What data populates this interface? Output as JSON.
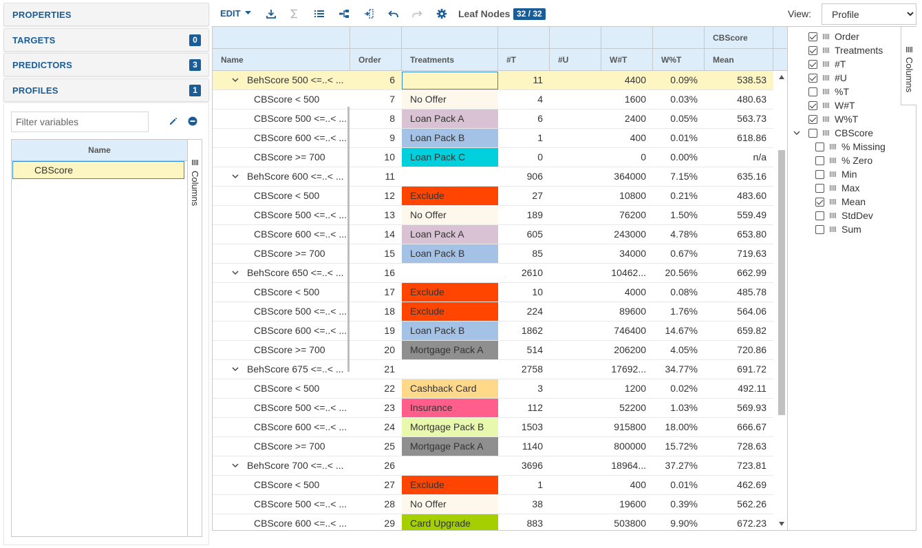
{
  "left_panel": {
    "sections": [
      {
        "title": "PROPERTIES",
        "badge": ""
      },
      {
        "title": "TARGETS",
        "badge": "0"
      },
      {
        "title": "PREDICTORS",
        "badge": "3"
      },
      {
        "title": "PROFILES",
        "badge": "1"
      }
    ],
    "filter_placeholder": "Filter variables",
    "variables_header": "Name",
    "variables": [
      "CBScore"
    ],
    "columns_tab": "Columns"
  },
  "toolbar": {
    "edit_label": "EDIT",
    "leaf_nodes_label": "Leaf Nodes",
    "leaf_nodes_count": "32 / 32",
    "view_label": "View:",
    "view_value": "Profile",
    "view_options": [
      "Profile"
    ]
  },
  "grid": {
    "group_header": "CBScore",
    "columns": [
      "Name",
      "Order",
      "Treatments",
      "#T",
      "#U",
      "W#T",
      "W%T",
      "Mean"
    ],
    "rows": [
      {
        "name": "BehScore 500 <=..< ...",
        "order": "6",
        "treatment": "",
        "t": "11",
        "u": "",
        "wt": "4400",
        "wpt": "0.09%",
        "mean": "538.53",
        "parent": true,
        "selected": true,
        "color": ""
      },
      {
        "name": "CBScore < 500",
        "order": "7",
        "treatment": "No Offer",
        "t": "4",
        "u": "",
        "wt": "1600",
        "wpt": "0.03%",
        "mean": "480.63",
        "parent": false,
        "color": "#fdf8eb"
      },
      {
        "name": "CBScore 500 <=..< ...",
        "order": "8",
        "treatment": "Loan Pack A",
        "t": "6",
        "u": "",
        "wt": "2400",
        "wpt": "0.05%",
        "mean": "563.73",
        "parent": false,
        "color": "#d9c2d4"
      },
      {
        "name": "CBScore 600 <=..< ...",
        "order": "9",
        "treatment": "Loan Pack B",
        "t": "1",
        "u": "",
        "wt": "400",
        "wpt": "0.01%",
        "mean": "618.86",
        "parent": false,
        "color": "#a4c2e6"
      },
      {
        "name": "CBScore >= 700",
        "order": "10",
        "treatment": "Loan Pack C",
        "t": "0",
        "u": "",
        "wt": "0",
        "wpt": "0.00%",
        "mean": "n/a",
        "parent": false,
        "color": "#00cfdc"
      },
      {
        "name": "BehScore 600 <=..< ...",
        "order": "11",
        "treatment": "",
        "t": "906",
        "u": "",
        "wt": "364000",
        "wpt": "7.15%",
        "mean": "635.16",
        "parent": true,
        "color": ""
      },
      {
        "name": "CBScore < 500",
        "order": "12",
        "treatment": "Exclude",
        "t": "27",
        "u": "",
        "wt": "10800",
        "wpt": "0.21%",
        "mean": "483.60",
        "parent": false,
        "color": "#ff4500"
      },
      {
        "name": "CBScore 500 <=..< ...",
        "order": "13",
        "treatment": "No Offer",
        "t": "189",
        "u": "",
        "wt": "76200",
        "wpt": "1.50%",
        "mean": "559.49",
        "parent": false,
        "color": "#fdf8eb"
      },
      {
        "name": "CBScore 600 <=..< ...",
        "order": "14",
        "treatment": "Loan Pack A",
        "t": "605",
        "u": "",
        "wt": "243000",
        "wpt": "4.78%",
        "mean": "653.80",
        "parent": false,
        "color": "#d9c2d4"
      },
      {
        "name": "CBScore >= 700",
        "order": "15",
        "treatment": "Loan Pack B",
        "t": "85",
        "u": "",
        "wt": "34000",
        "wpt": "0.67%",
        "mean": "719.63",
        "parent": false,
        "color": "#a4c2e6"
      },
      {
        "name": "BehScore 650 <=..< ...",
        "order": "16",
        "treatment": "",
        "t": "2610",
        "u": "",
        "wt": "10462...",
        "wpt": "20.56%",
        "mean": "662.99",
        "parent": true,
        "color": ""
      },
      {
        "name": "CBScore < 500",
        "order": "17",
        "treatment": "Exclude",
        "t": "10",
        "u": "",
        "wt": "4000",
        "wpt": "0.08%",
        "mean": "485.78",
        "parent": false,
        "color": "#ff4500"
      },
      {
        "name": "CBScore 500 <=..< ...",
        "order": "18",
        "treatment": "Exclude",
        "t": "224",
        "u": "",
        "wt": "89600",
        "wpt": "1.76%",
        "mean": "564.06",
        "parent": false,
        "color": "#ff4500"
      },
      {
        "name": "CBScore 600 <=..< ...",
        "order": "19",
        "treatment": "Loan Pack B",
        "t": "1862",
        "u": "",
        "wt": "746400",
        "wpt": "14.67%",
        "mean": "659.82",
        "parent": false,
        "color": "#a4c2e6"
      },
      {
        "name": "CBScore >= 700",
        "order": "20",
        "treatment": "Mortgage Pack A",
        "t": "514",
        "u": "",
        "wt": "206200",
        "wpt": "4.05%",
        "mean": "720.86",
        "parent": false,
        "color": "#8f8f8f"
      },
      {
        "name": "BehScore 675 <=..< ...",
        "order": "21",
        "treatment": "",
        "t": "2758",
        "u": "",
        "wt": "17692...",
        "wpt": "34.77%",
        "mean": "691.72",
        "parent": true,
        "color": ""
      },
      {
        "name": "CBScore < 500",
        "order": "22",
        "treatment": "Cashback Card",
        "t": "3",
        "u": "",
        "wt": "1200",
        "wpt": "0.02%",
        "mean": "492.11",
        "parent": false,
        "color": "#ffd98a"
      },
      {
        "name": "CBScore 500 <=..< ...",
        "order": "23",
        "treatment": "Insurance",
        "t": "112",
        "u": "",
        "wt": "52200",
        "wpt": "1.03%",
        "mean": "569.93",
        "parent": false,
        "color": "#ff5f8a"
      },
      {
        "name": "CBScore 600 <=..< ...",
        "order": "24",
        "treatment": "Mortgage Pack B",
        "t": "1503",
        "u": "",
        "wt": "915800",
        "wpt": "18.00%",
        "mean": "666.67",
        "parent": false,
        "color": "#e8f8ad"
      },
      {
        "name": "CBScore >= 700",
        "order": "25",
        "treatment": "Mortgage Pack A",
        "t": "1140",
        "u": "",
        "wt": "800000",
        "wpt": "15.72%",
        "mean": "728.63",
        "parent": false,
        "color": "#8f8f8f"
      },
      {
        "name": "BehScore 700 <=..< ...",
        "order": "26",
        "treatment": "",
        "t": "3696",
        "u": "",
        "wt": "18964...",
        "wpt": "37.27%",
        "mean": "723.81",
        "parent": true,
        "color": ""
      },
      {
        "name": "CBScore < 500",
        "order": "27",
        "treatment": "Exclude",
        "t": "1",
        "u": "",
        "wt": "400",
        "wpt": "0.01%",
        "mean": "462.69",
        "parent": false,
        "color": "#ff4500"
      },
      {
        "name": "CBScore 500 <=..< ...",
        "order": "28",
        "treatment": "No Offer",
        "t": "38",
        "u": "",
        "wt": "19600",
        "wpt": "0.39%",
        "mean": "562.26",
        "parent": false,
        "color": "#fdf8eb"
      },
      {
        "name": "CBScore 600 <=..< ...",
        "order": "29",
        "treatment": "Card Upgrade",
        "t": "883",
        "u": "",
        "wt": "503800",
        "wpt": "9.90%",
        "mean": "672.23",
        "parent": false,
        "color": "#a5cf00"
      }
    ]
  },
  "column_chooser": {
    "tab_label": "Columns",
    "items": [
      {
        "label": "Order",
        "checked": true,
        "level": 0
      },
      {
        "label": "Treatments",
        "checked": true,
        "level": 0
      },
      {
        "label": "#T",
        "checked": true,
        "level": 0
      },
      {
        "label": "#U",
        "checked": true,
        "level": 0
      },
      {
        "label": "%T",
        "checked": false,
        "level": 0
      },
      {
        "label": "W#T",
        "checked": true,
        "level": 0
      },
      {
        "label": "W%T",
        "checked": true,
        "level": 0
      },
      {
        "label": "CBScore",
        "checked": false,
        "level": 0,
        "group": true
      },
      {
        "label": "% Missing",
        "checked": false,
        "level": 1
      },
      {
        "label": "% Zero",
        "checked": false,
        "level": 1
      },
      {
        "label": "Min",
        "checked": false,
        "level": 1
      },
      {
        "label": "Max",
        "checked": false,
        "level": 1
      },
      {
        "label": "Mean",
        "checked": true,
        "level": 1
      },
      {
        "label": "StdDev",
        "checked": false,
        "level": 1
      },
      {
        "label": "Sum",
        "checked": false,
        "level": 1
      }
    ]
  },
  "colors": {
    "accent": "#1a5c96",
    "header_bg": "#ddeefa",
    "selected_row": "#fdf5c2"
  }
}
